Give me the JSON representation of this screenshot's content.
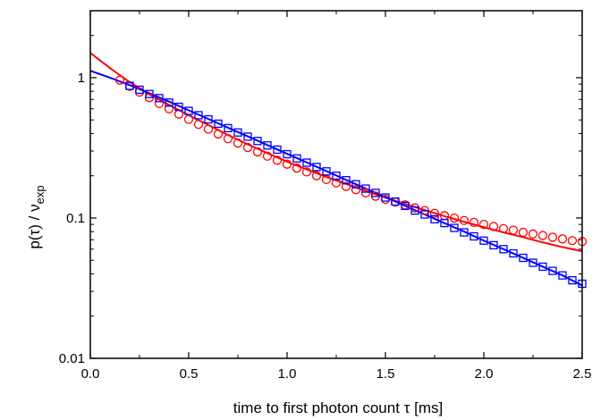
{
  "chart_data": {
    "type": "scatter",
    "xlabel": "time to first photon count τ [ms]",
    "ylabel": {
      "main": "p(τ) / ν",
      "sub": "exp"
    },
    "xlim": [
      0.0,
      2.5
    ],
    "ylim": [
      0.01,
      3.0
    ],
    "yscale": "log",
    "x_ticks": [
      "0.0",
      "0.5",
      "1.0",
      "1.5",
      "2.0",
      "2.5"
    ],
    "y_ticks": [
      "0.01",
      "0.1",
      "1"
    ],
    "grid": false,
    "legend": "none",
    "series": [
      {
        "marker": "circle",
        "color": "#ff0000",
        "points": [
          [
            0.15,
            0.96
          ],
          [
            0.2,
            0.87
          ],
          [
            0.25,
            0.79
          ],
          [
            0.3,
            0.72
          ],
          [
            0.35,
            0.655
          ],
          [
            0.4,
            0.6
          ],
          [
            0.45,
            0.55
          ],
          [
            0.5,
            0.505
          ],
          [
            0.55,
            0.465
          ],
          [
            0.6,
            0.43
          ],
          [
            0.65,
            0.397
          ],
          [
            0.7,
            0.368
          ],
          [
            0.75,
            0.342
          ],
          [
            0.8,
            0.318
          ],
          [
            0.85,
            0.296
          ],
          [
            0.9,
            0.276
          ],
          [
            0.95,
            0.258
          ],
          [
            1.0,
            0.242
          ],
          [
            1.05,
            0.227
          ],
          [
            1.1,
            0.213
          ],
          [
            1.15,
            0.2
          ],
          [
            1.2,
            0.188
          ],
          [
            1.25,
            0.178
          ],
          [
            1.3,
            0.168
          ],
          [
            1.35,
            0.159
          ],
          [
            1.4,
            0.151
          ],
          [
            1.45,
            0.143
          ],
          [
            1.5,
            0.136
          ],
          [
            1.55,
            0.13
          ],
          [
            1.6,
            0.124
          ],
          [
            1.65,
            0.118
          ],
          [
            1.7,
            0.113
          ],
          [
            1.75,
            0.108
          ],
          [
            1.8,
            0.104
          ],
          [
            1.85,
            0.1
          ],
          [
            1.9,
            0.096
          ],
          [
            1.95,
            0.093
          ],
          [
            2.0,
            0.09
          ],
          [
            2.05,
            0.087
          ],
          [
            2.1,
            0.084
          ],
          [
            2.15,
            0.082
          ],
          [
            2.2,
            0.079
          ],
          [
            2.25,
            0.077
          ],
          [
            2.3,
            0.075
          ],
          [
            2.35,
            0.073
          ],
          [
            2.4,
            0.071
          ],
          [
            2.45,
            0.069
          ],
          [
            2.5,
            0.068
          ]
        ]
      },
      {
        "marker": "square",
        "color": "#0000ff",
        "points": [
          [
            0.2,
            0.875
          ],
          [
            0.25,
            0.82
          ],
          [
            0.3,
            0.765
          ],
          [
            0.35,
            0.715
          ],
          [
            0.4,
            0.665
          ],
          [
            0.45,
            0.62
          ],
          [
            0.5,
            0.58
          ],
          [
            0.55,
            0.54
          ],
          [
            0.6,
            0.505
          ],
          [
            0.65,
            0.47
          ],
          [
            0.7,
            0.437
          ],
          [
            0.75,
            0.407
          ],
          [
            0.8,
            0.38
          ],
          [
            0.85,
            0.354
          ],
          [
            0.9,
            0.329
          ],
          [
            0.95,
            0.307
          ],
          [
            1.0,
            0.285
          ],
          [
            1.05,
            0.266
          ],
          [
            1.1,
            0.248
          ],
          [
            1.15,
            0.231
          ],
          [
            1.2,
            0.215
          ],
          [
            1.25,
            0.2
          ],
          [
            1.3,
            0.186
          ],
          [
            1.35,
            0.174
          ],
          [
            1.4,
            0.162
          ],
          [
            1.45,
            0.151
          ],
          [
            1.5,
            0.14
          ],
          [
            1.55,
            0.131
          ],
          [
            1.6,
            0.122
          ],
          [
            1.65,
            0.113
          ],
          [
            1.7,
            0.106
          ],
          [
            1.75,
            0.098
          ],
          [
            1.8,
            0.092
          ],
          [
            1.85,
            0.085
          ],
          [
            1.9,
            0.079
          ],
          [
            1.95,
            0.074
          ],
          [
            2.0,
            0.069
          ],
          [
            2.05,
            0.064
          ],
          [
            2.1,
            0.06
          ],
          [
            2.15,
            0.056
          ],
          [
            2.2,
            0.052
          ],
          [
            2.25,
            0.048
          ],
          [
            2.3,
            0.045
          ],
          [
            2.35,
            0.042
          ],
          [
            2.4,
            0.039
          ],
          [
            2.45,
            0.036
          ],
          [
            2.5,
            0.034
          ]
        ]
      }
    ],
    "fits": [
      {
        "color": "#ff0000",
        "points": [
          [
            0.0,
            1.5
          ],
          [
            0.1,
            1.17
          ],
          [
            0.2,
            0.93
          ],
          [
            0.3,
            0.76
          ],
          [
            0.4,
            0.64
          ],
          [
            0.5,
            0.54
          ],
          [
            0.6,
            0.46
          ],
          [
            0.7,
            0.39
          ],
          [
            0.8,
            0.335
          ],
          [
            0.9,
            0.29
          ],
          [
            1.0,
            0.252
          ],
          [
            1.1,
            0.222
          ],
          [
            1.2,
            0.196
          ],
          [
            1.3,
            0.175
          ],
          [
            1.4,
            0.156
          ],
          [
            1.5,
            0.14
          ],
          [
            1.6,
            0.126
          ],
          [
            1.7,
            0.114
          ],
          [
            1.8,
            0.103
          ],
          [
            1.9,
            0.094
          ],
          [
            2.0,
            0.086
          ],
          [
            2.1,
            0.079
          ],
          [
            2.2,
            0.073
          ],
          [
            2.3,
            0.067
          ],
          [
            2.4,
            0.062
          ],
          [
            2.5,
            0.058
          ]
        ]
      },
      {
        "color": "#0000ff",
        "points": [
          [
            0.0,
            1.12
          ],
          [
            0.1,
            1.0
          ],
          [
            0.2,
            0.885
          ],
          [
            0.3,
            0.775
          ],
          [
            0.4,
            0.675
          ],
          [
            0.5,
            0.585
          ],
          [
            0.6,
            0.508
          ],
          [
            0.7,
            0.44
          ],
          [
            0.8,
            0.382
          ],
          [
            0.9,
            0.331
          ],
          [
            1.0,
            0.287
          ],
          [
            1.1,
            0.249
          ],
          [
            1.2,
            0.216
          ],
          [
            1.3,
            0.187
          ],
          [
            1.4,
            0.162
          ],
          [
            1.5,
            0.141
          ],
          [
            1.6,
            0.122
          ],
          [
            1.7,
            0.106
          ],
          [
            1.8,
            0.092
          ],
          [
            1.9,
            0.08
          ],
          [
            2.0,
            0.069
          ],
          [
            2.1,
            0.06
          ],
          [
            2.2,
            0.052
          ],
          [
            2.3,
            0.045
          ],
          [
            2.4,
            0.039
          ],
          [
            2.5,
            0.033
          ]
        ]
      }
    ]
  }
}
